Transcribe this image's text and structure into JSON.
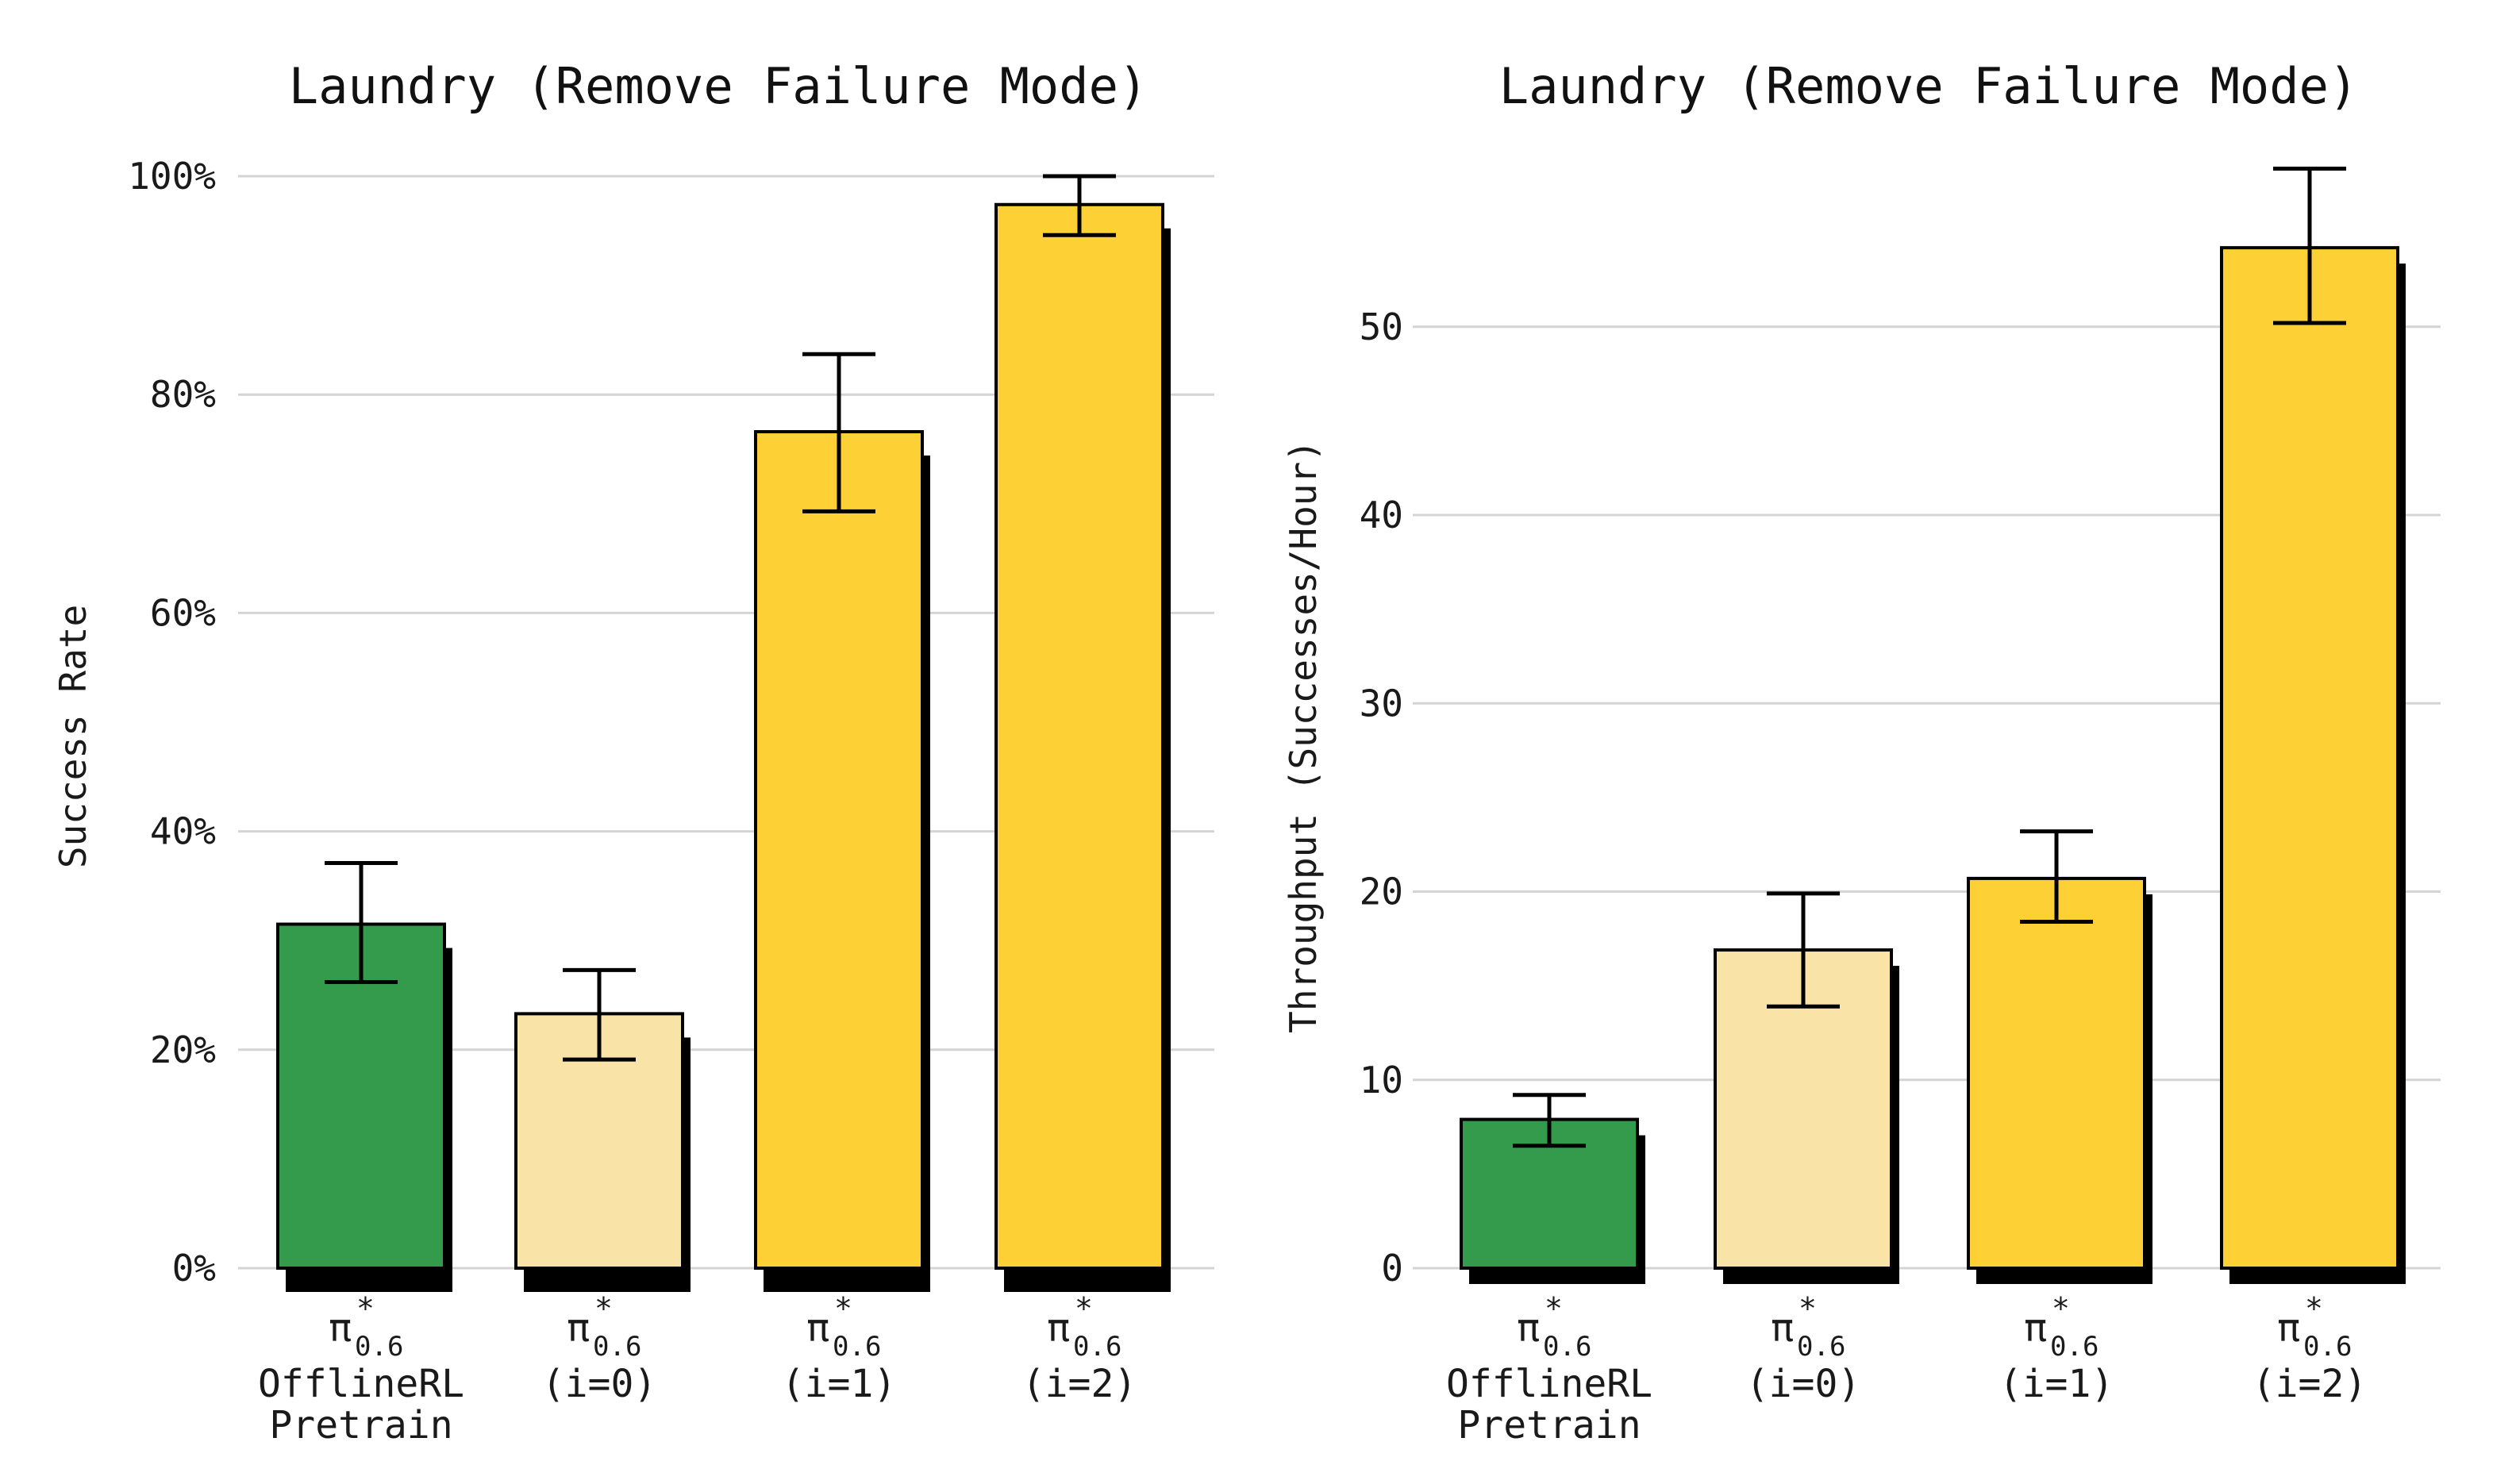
{
  "chart_data": [
    {
      "type": "bar",
      "title": "Laundry (Remove Failure Mode)",
      "xlabel": "",
      "ylabel": "Success Rate",
      "ylim": [
        0,
        100
      ],
      "yticks": [
        0,
        20,
        40,
        60,
        80,
        100
      ],
      "ytick_format": "percent",
      "grid": true,
      "categories": [
        {
          "symbol": "π",
          "superscript": "*",
          "subscript": "0.6",
          "lines": [
            "OfflineRL",
            "Pretrain"
          ]
        },
        {
          "symbol": "π",
          "superscript": "*",
          "subscript": "0.6",
          "lines": [
            "(i=0)"
          ]
        },
        {
          "symbol": "π",
          "superscript": "*",
          "subscript": "0.6",
          "lines": [
            "(i=1)"
          ]
        },
        {
          "symbol": "π",
          "superscript": "*",
          "subscript": "0.6",
          "lines": [
            "(i=2)"
          ]
        }
      ],
      "values": [
        31.5,
        23.3,
        76.6,
        97.4
      ],
      "error_low": [
        26.2,
        19.1,
        69.3,
        94.6
      ],
      "error_high": [
        37.1,
        27.3,
        83.7,
        100.0
      ],
      "colors": [
        "#339b4b",
        "#f9e3a7",
        "#fdd036",
        "#fdd036"
      ]
    },
    {
      "type": "bar",
      "title": "Laundry (Remove Failure Mode)",
      "xlabel": "",
      "ylabel": "Throughput (Successes/Hour)",
      "ylim": [
        0,
        58
      ],
      "yticks": [
        0,
        10,
        20,
        30,
        40,
        50
      ],
      "ytick_format": "number",
      "grid": true,
      "categories": [
        {
          "symbol": "π",
          "superscript": "*",
          "subscript": "0.6",
          "lines": [
            "OfflineRL",
            "Pretrain"
          ]
        },
        {
          "symbol": "π",
          "superscript": "*",
          "subscript": "0.6",
          "lines": [
            "(i=0)"
          ]
        },
        {
          "symbol": "π",
          "superscript": "*",
          "subscript": "0.6",
          "lines": [
            "(i=1)"
          ]
        },
        {
          "symbol": "π",
          "superscript": "*",
          "subscript": "0.6",
          "lines": [
            "(i=2)"
          ]
        }
      ],
      "values": [
        7.9,
        16.9,
        20.7,
        54.2
      ],
      "error_low": [
        6.5,
        13.9,
        18.4,
        50.2
      ],
      "error_high": [
        9.2,
        19.9,
        23.2,
        58.4
      ],
      "colors": [
        "#339b4b",
        "#f9e3a7",
        "#fdd036",
        "#fdd036"
      ]
    }
  ]
}
